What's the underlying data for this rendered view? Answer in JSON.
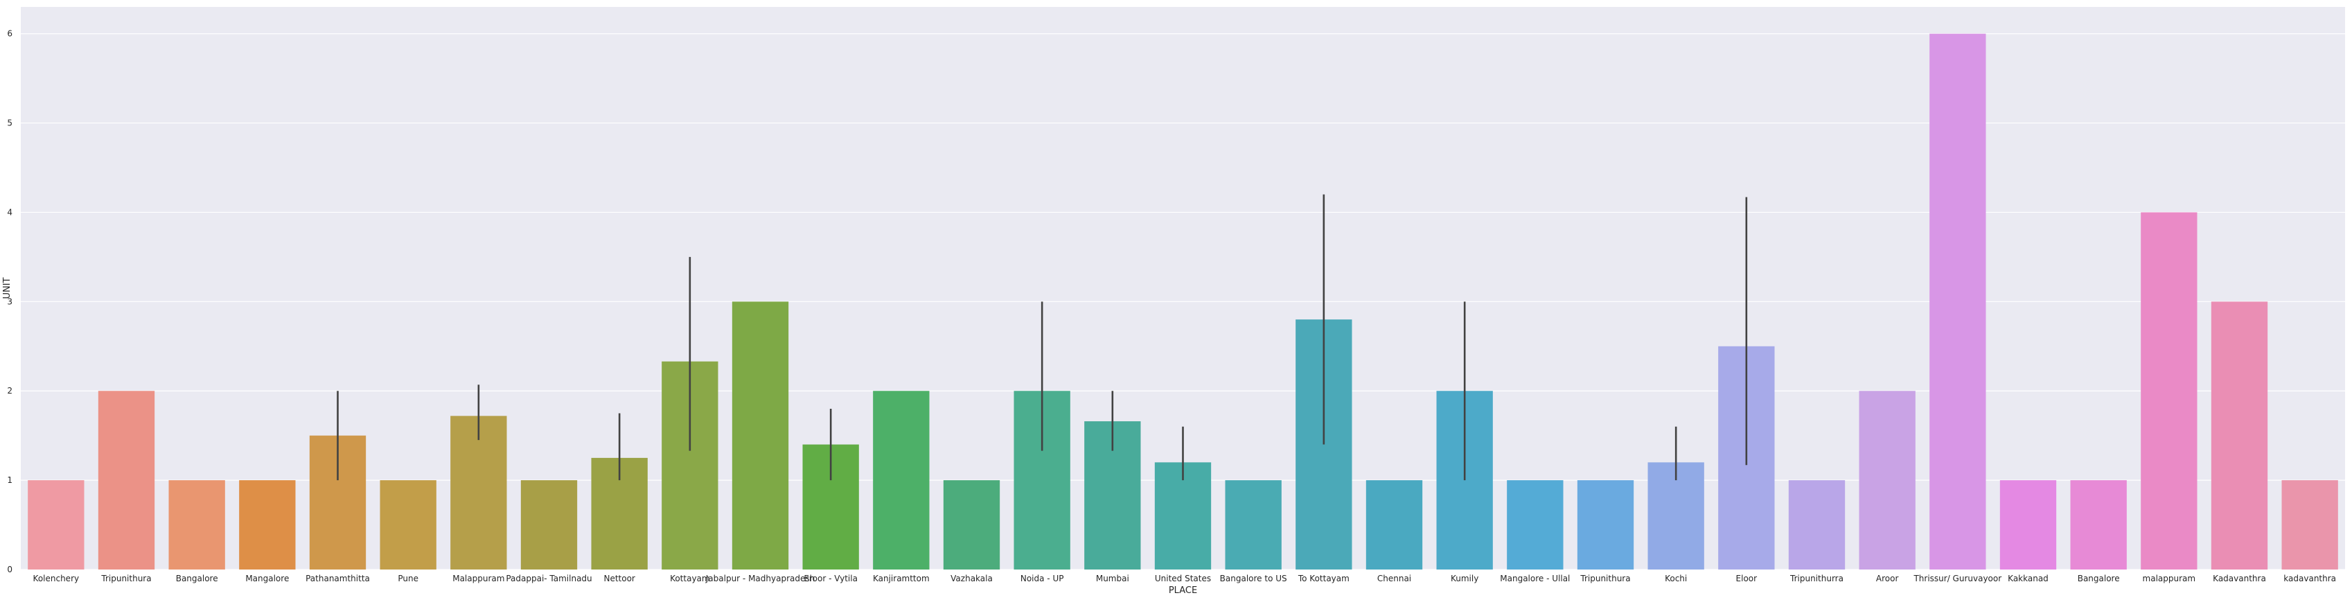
{
  "chart_data": {
    "type": "bar",
    "title": "",
    "xlabel": "PLACE",
    "ylabel": "UNIT",
    "ylim": [
      0,
      6.3
    ],
    "yticks": [
      0,
      1,
      2,
      3,
      4,
      5,
      6
    ],
    "grid": true,
    "background_color": "#eaeaf2",
    "grid_color": "#ffffff",
    "errorbar_color": "#424242",
    "categories": [
      "Kolenchery",
      "Tripunithura",
      "Bangalore",
      "Mangalore",
      "Pathanamthitta",
      "Pune",
      "Malappuram",
      "Padappai- Tamilnadu",
      "Nettoor",
      "Kottayam",
      "Jabalpur - Madhyapradesh",
      "Eroor - Vytila",
      "Kanjiramttom",
      "Vazhakala",
      "Noida - UP",
      "Mumbai",
      "United States",
      "Bangalore to US",
      "To Kottayam",
      "Chennai",
      "Kumily",
      "Mangalore - Ullal",
      "Tripunithura",
      "Kochi",
      "Eloor",
      "Tripunithurra",
      "Aroor",
      "Thrissur/ Guruvayoor",
      "Kakkanad",
      "Bangalore",
      "malappuram",
      "Kadavanthra",
      "kadavanthra"
    ],
    "values": [
      1,
      2,
      1,
      1,
      1.5,
      1,
      1.72,
      1,
      1.25,
      2.33,
      3,
      1.4,
      2,
      1,
      2,
      1.66,
      1.2,
      1,
      2.8,
      1,
      2,
      1,
      1,
      1.2,
      2.5,
      1,
      2,
      6,
      1,
      1,
      4,
      3,
      1
    ],
    "error_low": [
      null,
      null,
      null,
      null,
      1,
      null,
      1.45,
      null,
      1,
      1.33,
      null,
      1,
      null,
      null,
      1.33,
      1.33,
      1,
      null,
      1.4,
      null,
      1,
      null,
      null,
      1,
      1.17,
      null,
      null,
      null,
      null,
      null,
      null,
      null,
      null
    ],
    "error_high": [
      null,
      null,
      null,
      null,
      2,
      null,
      2.07,
      null,
      1.75,
      3.5,
      null,
      1.8,
      null,
      null,
      3,
      2,
      1.6,
      null,
      4.2,
      null,
      3,
      null,
      null,
      1.6,
      4.17,
      null,
      null,
      null,
      null,
      null,
      null,
      null,
      null
    ],
    "colors": [
      "#ef9aa3",
      "#eb9287",
      "#e99670",
      "#de8f47",
      "#cf984b",
      "#c29e49",
      "#b59f4a",
      "#a89f47",
      "#9aa245",
      "#8aa848",
      "#7ea946",
      "#61ad45",
      "#4db068",
      "#4cac7c",
      "#4bae8f",
      "#49ab9a",
      "#48aca7",
      "#4aabb3",
      "#4ba9b8",
      "#4aa9c1",
      "#4daac9",
      "#54abd6",
      "#6aaae0",
      "#91aae6",
      "#a7aae9",
      "#b9a6e8",
      "#c9a3e5",
      "#d896e6",
      "#e489e3",
      "#e78ad6",
      "#ea8ac6",
      "#ea8eb4",
      "#ea95ab"
    ]
  }
}
